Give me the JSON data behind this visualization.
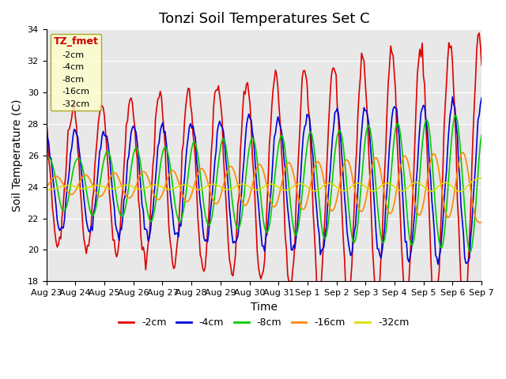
{
  "title": "Tonzi Soil Temperatures Set C",
  "xlabel": "Time",
  "ylabel": "Soil Temperature (C)",
  "ylim": [
    18,
    34
  ],
  "yticks": [
    18,
    20,
    22,
    24,
    26,
    28,
    30,
    32,
    34
  ],
  "date_labels": [
    "Aug 23",
    "Aug 24",
    "Aug 25",
    "Aug 26",
    "Aug 27",
    "Aug 28",
    "Aug 29",
    "Aug 30",
    "Aug 31",
    "Sep 1",
    "Sep 2",
    "Sep 3",
    "Sep 4",
    "Sep 5",
    "Sep 6",
    "Sep 7"
  ],
  "series_colors": {
    "-2cm": "#dd0000",
    "-4cm": "#0000dd",
    "-8cm": "#00cc00",
    "-16cm": "#ff8800",
    "-32cm": "#dddd00"
  },
  "legend_label": "TZ_fmet",
  "legend_box_facecolor": "#ffffcc",
  "legend_box_edgecolor": "#999900",
  "background_color": "#e8e8e8",
  "grid_color": "#ffffff",
  "title_fontsize": 13,
  "axis_fontsize": 10,
  "tick_fontsize": 8
}
